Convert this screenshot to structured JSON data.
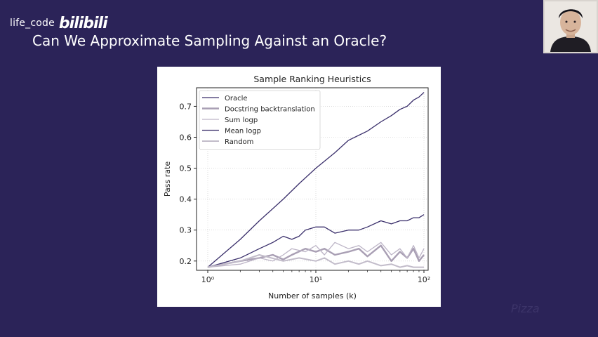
{
  "watermark": {
    "text": "life_code",
    "logo": "bilibili"
  },
  "slide": {
    "title": "Can We Approximate Sampling Against an Oracle?"
  },
  "webcam": {
    "icon": "presenter-avatar-icon"
  },
  "chart_data": {
    "type": "line",
    "title": "Sample Ranking Heuristics",
    "xlabel": "Number of samples (k)",
    "ylabel": "Pass rate",
    "xscale": "log",
    "xlim": [
      1,
      100
    ],
    "ylim": [
      0.17,
      0.76
    ],
    "xticks": [
      "10⁰",
      "10¹",
      "10²"
    ],
    "yticks": [
      "0.2",
      "0.3",
      "0.4",
      "0.5",
      "0.6",
      "0.7"
    ],
    "grid": true,
    "legend_position": "top-left",
    "series": [
      {
        "name": "Oracle",
        "color": "#3a2f6b",
        "width": 1.3,
        "x": [
          1,
          2,
          3,
          5,
          7,
          10,
          15,
          20,
          30,
          40,
          50,
          60,
          70,
          80,
          90,
          100
        ],
        "y": [
          0.18,
          0.27,
          0.33,
          0.4,
          0.45,
          0.5,
          0.55,
          0.59,
          0.62,
          0.65,
          0.67,
          0.69,
          0.7,
          0.72,
          0.73,
          0.745
        ]
      },
      {
        "name": "Docstring backtranslation",
        "color": "#a99fb4",
        "width": 2.4,
        "x": [
          1,
          2,
          3,
          4,
          5,
          6,
          8,
          10,
          12,
          15,
          20,
          25,
          30,
          40,
          50,
          60,
          70,
          80,
          90,
          100
        ],
        "y": [
          0.18,
          0.2,
          0.21,
          0.22,
          0.205,
          0.22,
          0.24,
          0.23,
          0.24,
          0.22,
          0.23,
          0.24,
          0.215,
          0.25,
          0.2,
          0.23,
          0.21,
          0.24,
          0.2,
          0.22
        ]
      },
      {
        "name": "Sum logp",
        "color": "#bdb5c7",
        "width": 1.3,
        "x": [
          1,
          2,
          3,
          4,
          5,
          6,
          8,
          10,
          12,
          15,
          20,
          25,
          30,
          40,
          50,
          60,
          70,
          80,
          90,
          100
        ],
        "y": [
          0.18,
          0.19,
          0.21,
          0.2,
          0.22,
          0.24,
          0.23,
          0.25,
          0.22,
          0.26,
          0.24,
          0.25,
          0.23,
          0.26,
          0.22,
          0.24,
          0.21,
          0.25,
          0.21,
          0.24
        ]
      },
      {
        "name": "Mean logp",
        "color": "#3a2f6b",
        "width": 1.3,
        "x": [
          1,
          2,
          3,
          4,
          5,
          6,
          7,
          8,
          10,
          12,
          15,
          20,
          25,
          30,
          40,
          50,
          60,
          70,
          80,
          90,
          100
        ],
        "y": [
          0.18,
          0.21,
          0.24,
          0.26,
          0.28,
          0.27,
          0.28,
          0.3,
          0.31,
          0.31,
          0.29,
          0.3,
          0.3,
          0.31,
          0.33,
          0.32,
          0.33,
          0.33,
          0.34,
          0.34,
          0.35
        ]
      },
      {
        "name": "Random",
        "color": "#c2bcca",
        "width": 2.0,
        "x": [
          1,
          2,
          3,
          5,
          7,
          10,
          12,
          15,
          20,
          25,
          30,
          40,
          50,
          60,
          70,
          80,
          90,
          100
        ],
        "y": [
          0.18,
          0.2,
          0.22,
          0.2,
          0.21,
          0.2,
          0.21,
          0.19,
          0.2,
          0.19,
          0.2,
          0.185,
          0.19,
          0.18,
          0.185,
          0.18,
          0.18,
          0.18
        ]
      }
    ]
  }
}
